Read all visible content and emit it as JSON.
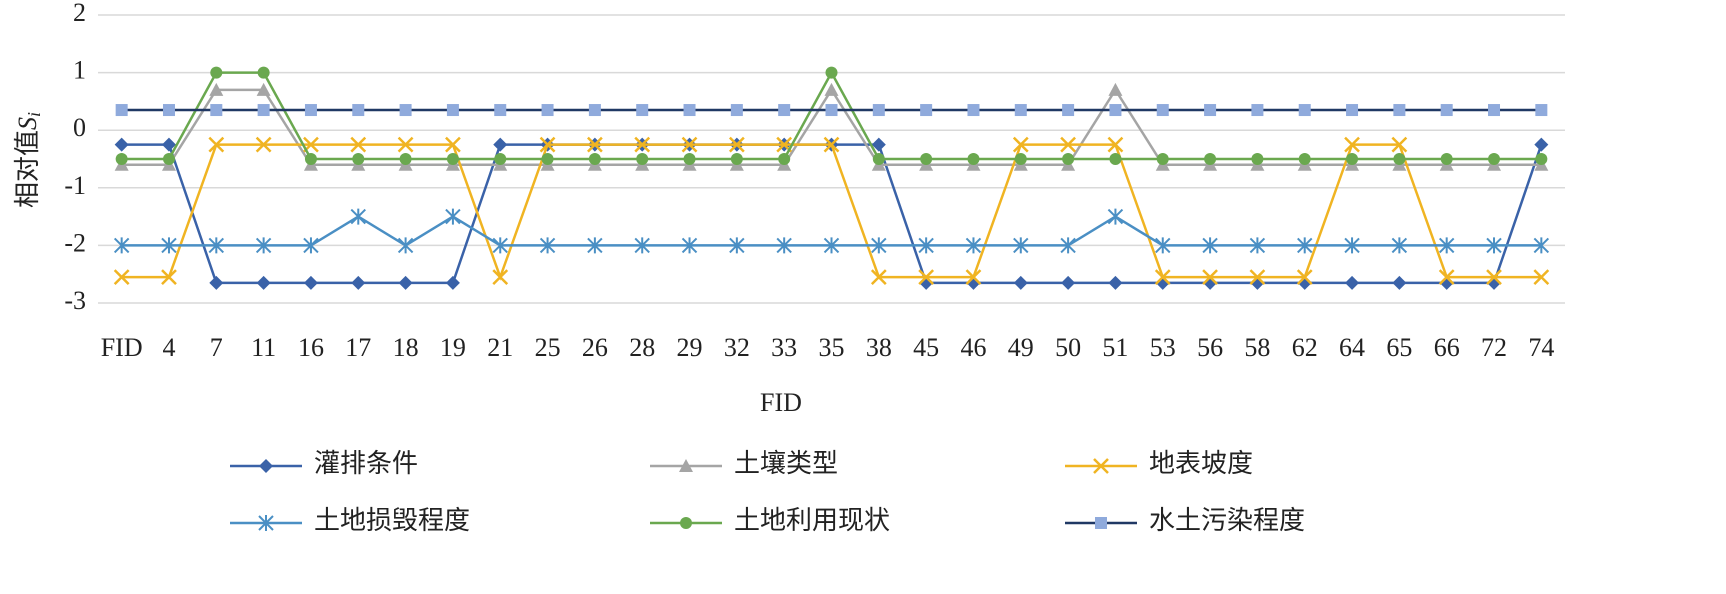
{
  "chart_data": {
    "type": "line",
    "ylabel": {
      "text": "相对值",
      "symbol": "S",
      "subscript": "i"
    },
    "xlabel": "FID",
    "categories": [
      "FID",
      "4",
      "7",
      "11",
      "16",
      "17",
      "18",
      "19",
      "21",
      "25",
      "26",
      "28",
      "29",
      "32",
      "33",
      "35",
      "38",
      "45",
      "46",
      "49",
      "50",
      "51",
      "53",
      "56",
      "58",
      "62",
      "64",
      "65",
      "66",
      "72",
      "74"
    ],
    "ylim": [
      -3,
      2
    ],
    "yticks": [
      -3,
      -2,
      -1,
      0,
      1,
      2
    ],
    "grid": true,
    "legend": "bottom",
    "series": [
      {
        "name": "灌排条件",
        "color": "#3a62a8",
        "marker": "diamond",
        "values": [
          -0.25,
          -0.25,
          -2.65,
          -2.65,
          -2.65,
          -2.65,
          -2.65,
          -2.65,
          -0.25,
          -0.25,
          -0.25,
          -0.25,
          -0.25,
          -0.25,
          -0.25,
          -0.25,
          -0.25,
          -2.65,
          -2.65,
          -2.65,
          -2.65,
          -2.65,
          -2.65,
          -2.65,
          -2.65,
          -2.65,
          -2.65,
          -2.65,
          -2.65,
          -2.65,
          -0.25
        ]
      },
      {
        "name": "土壤类型",
        "color": "#a5a5a5",
        "marker": "triangle",
        "values": [
          -0.6,
          -0.6,
          0.7,
          0.7,
          -0.6,
          -0.6,
          -0.6,
          -0.6,
          -0.6,
          -0.6,
          -0.6,
          -0.6,
          -0.6,
          -0.6,
          -0.6,
          0.7,
          -0.6,
          -0.6,
          -0.6,
          -0.6,
          -0.6,
          0.7,
          -0.6,
          -0.6,
          -0.6,
          -0.6,
          -0.6,
          -0.6,
          -0.6,
          -0.6,
          -0.6
        ]
      },
      {
        "name": "地表坡度",
        "color": "#f0b422",
        "marker": "x",
        "values": [
          -2.55,
          -2.55,
          -0.25,
          -0.25,
          -0.25,
          -0.25,
          -0.25,
          -0.25,
          -2.55,
          -0.25,
          -0.25,
          -0.25,
          -0.25,
          -0.25,
          -0.25,
          -0.25,
          -2.55,
          -2.55,
          -2.55,
          -0.25,
          -0.25,
          -0.25,
          -2.55,
          -2.55,
          -2.55,
          -2.55,
          -0.25,
          -0.25,
          -2.55,
          -2.55,
          -2.55
        ]
      },
      {
        "name": "土地损毁程度",
        "color": "#4a8fc4",
        "marker": "asterisk",
        "values": [
          -2,
          -2,
          -2,
          -2,
          -2,
          -1.5,
          -2,
          -1.5,
          -2,
          -2,
          -2,
          -2,
          -2,
          -2,
          -2,
          -2,
          -2,
          -2,
          -2,
          -2,
          -2,
          -1.5,
          -2,
          -2,
          -2,
          -2,
          -2,
          -2,
          -2,
          -2,
          -2
        ]
      },
      {
        "name": "土地利用现状",
        "color": "#6aa84f",
        "marker": "circle",
        "values": [
          -0.5,
          -0.5,
          1,
          1,
          -0.5,
          -0.5,
          -0.5,
          -0.5,
          -0.5,
          -0.5,
          -0.5,
          -0.5,
          -0.5,
          -0.5,
          -0.5,
          1,
          -0.5,
          -0.5,
          -0.5,
          -0.5,
          -0.5,
          -0.5,
          -0.5,
          -0.5,
          -0.5,
          -0.5,
          -0.5,
          -0.5,
          -0.5,
          -0.5,
          -0.5
        ]
      },
      {
        "name": "水土污染程度",
        "color": "#203864",
        "marker": "square",
        "marker_color": "#8faadc",
        "values": [
          0.35,
          0.35,
          0.35,
          0.35,
          0.35,
          0.35,
          0.35,
          0.35,
          0.35,
          0.35,
          0.35,
          0.35,
          0.35,
          0.35,
          0.35,
          0.35,
          0.35,
          0.35,
          0.35,
          0.35,
          0.35,
          0.35,
          0.35,
          0.35,
          0.35,
          0.35,
          0.35,
          0.35,
          0.35,
          0.35,
          0.35
        ]
      }
    ]
  }
}
